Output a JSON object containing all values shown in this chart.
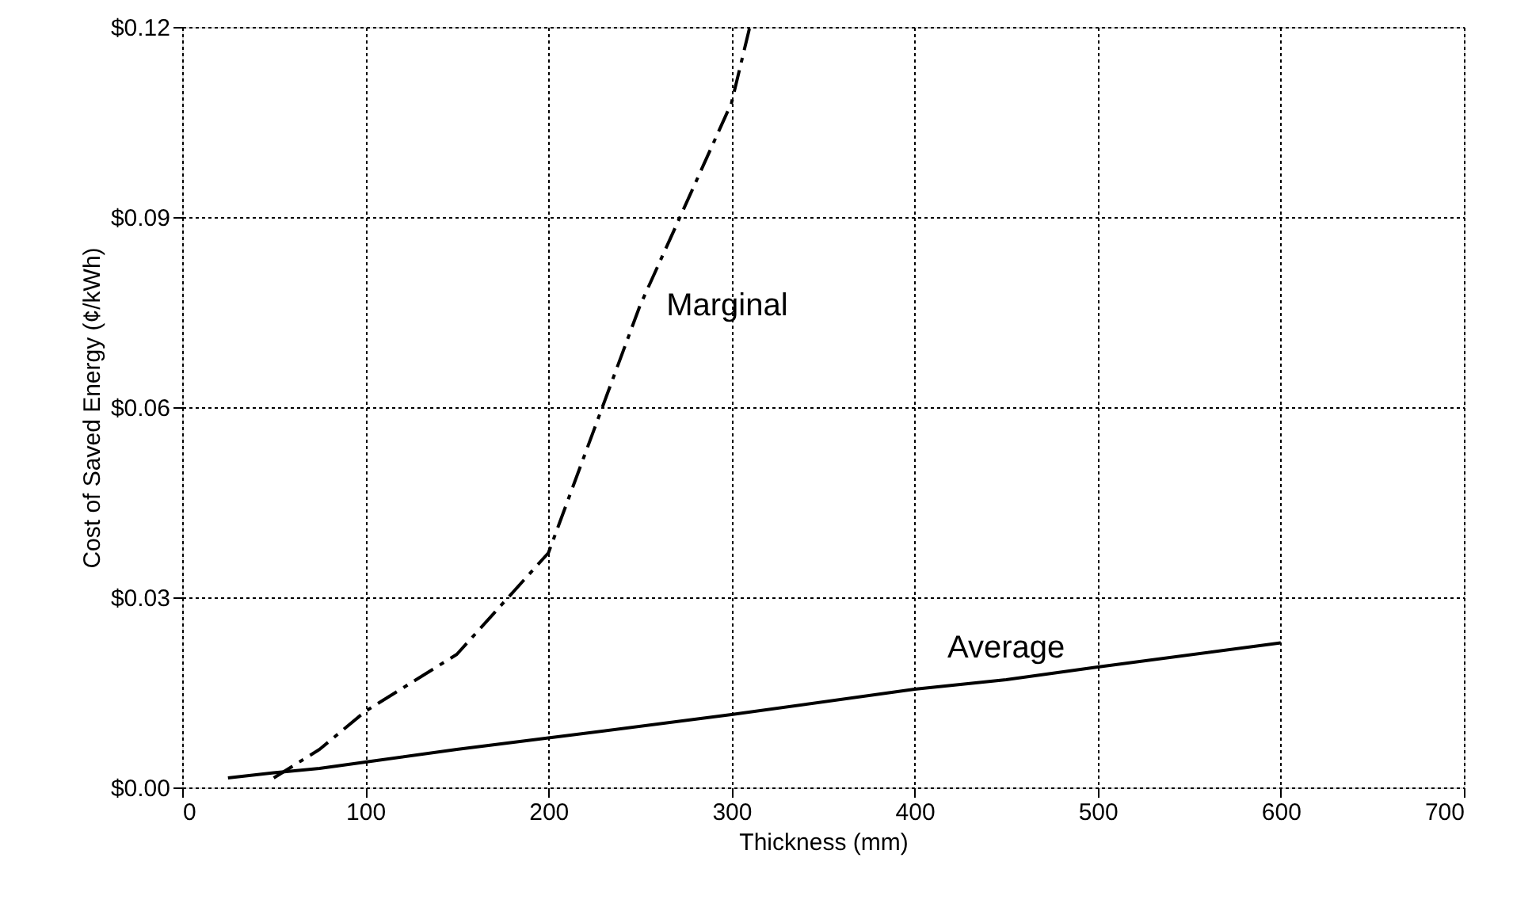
{
  "chart_data": {
    "type": "line",
    "xlabel": "Thickness (mm)",
    "ylabel": "Cost of Saved Energy (¢/kWh)",
    "xlim": [
      0,
      700
    ],
    "xticks": [
      0,
      100,
      200,
      300,
      400,
      500,
      600,
      700
    ],
    "ylim": [
      0,
      0.12
    ],
    "yticks": [
      {
        "value": 0,
        "label": "$0.00"
      },
      {
        "value": 0.03,
        "label": "$0.03"
      },
      {
        "value": 0.06,
        "label": "$0.06"
      },
      {
        "value": 0.09,
        "label": "$0.09"
      },
      {
        "value": 0.12,
        "label": "$0.12"
      }
    ],
    "grid": true,
    "marker": "none",
    "series": [
      {
        "name": "Marginal",
        "color": "#000000",
        "line_style": "dashed",
        "x": [
          50,
          75,
          100,
          150,
          200,
          250,
          300,
          310
        ],
        "values": [
          0.0015,
          0.006,
          0.012,
          0.021,
          0.037,
          0.076,
          0.108,
          0.12
        ]
      },
      {
        "name": "Average",
        "color": "#000000",
        "line_style": "solid",
        "x": [
          25,
          50,
          75,
          100,
          150,
          200,
          300,
          400,
          450,
          500,
          600
        ],
        "values": [
          0.0015,
          0.0023,
          0.003,
          0.004,
          0.006,
          0.0078,
          0.0115,
          0.0155,
          0.017,
          0.019,
          0.0228
        ]
      }
    ]
  }
}
